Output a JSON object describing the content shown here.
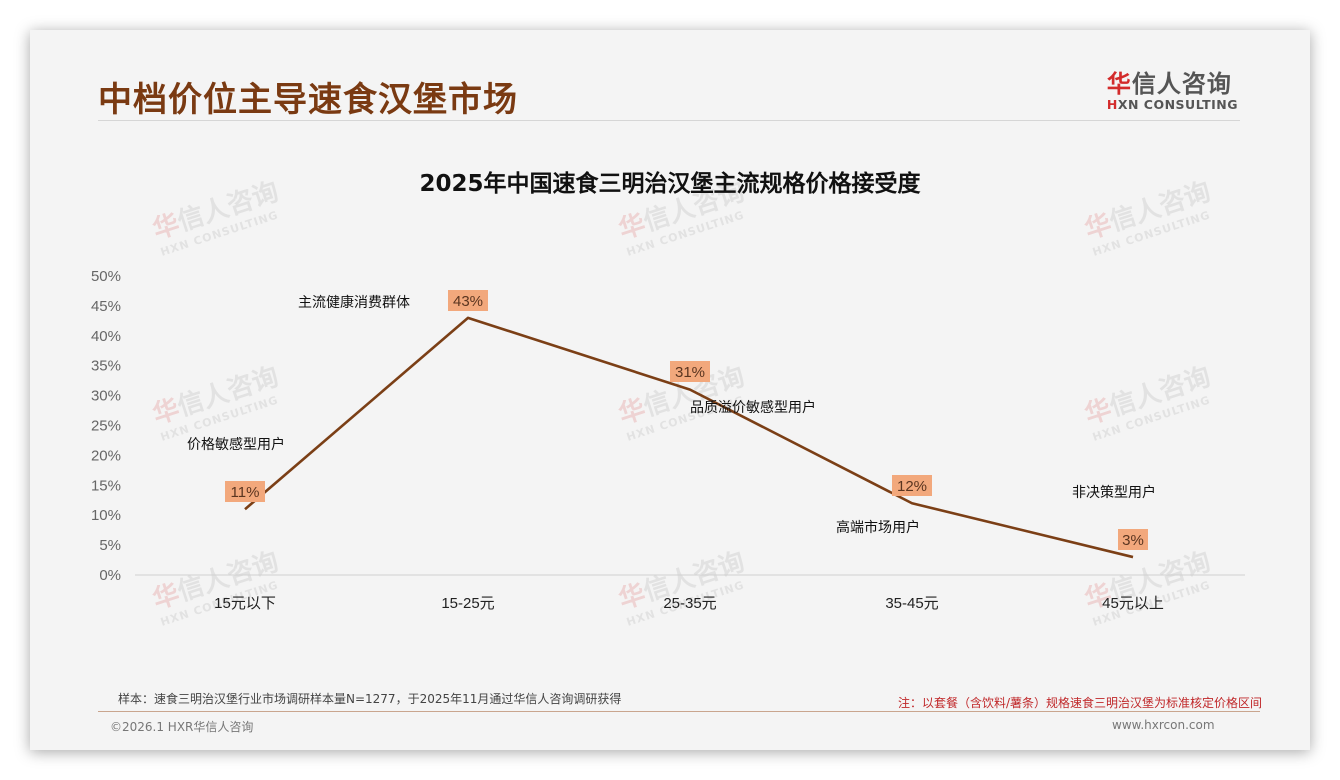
{
  "header": {
    "title": "中档价位主导速食汉堡市场",
    "logo": {
      "cn_highlight": "华",
      "cn_rest": "信人咨询",
      "en_highlight": "H",
      "en_rest": "XN CONSULTING"
    }
  },
  "watermark": {
    "cn_highlight": "华",
    "cn_rest": "信人咨询",
    "en": "HXN CONSULTING"
  },
  "chart_data": {
    "type": "line",
    "title": "2025年中国速食三明治汉堡主流规格价格接受度",
    "xlabel": "",
    "ylabel": "",
    "categories": [
      "15元以下",
      "15-25元",
      "25-35元",
      "35-45元",
      "45元以上"
    ],
    "values": [
      11,
      43,
      31,
      12,
      3
    ],
    "value_labels": [
      "11%",
      "43%",
      "31%",
      "12%",
      "3%"
    ],
    "segment_labels": [
      "价格敏感型用户",
      "主流健康消费群体",
      "品质溢价敏感型用户",
      "高端市场用户",
      "非决策型用户"
    ],
    "ylim": [
      0,
      50
    ],
    "yticks": [
      "0%",
      "5%",
      "10%",
      "15%",
      "20%",
      "25%",
      "30%",
      "35%",
      "40%",
      "45%",
      "50%"
    ],
    "grid": false,
    "legend": "none",
    "line_color": "#7b3f16",
    "label_bg_color": "#f2a87c"
  },
  "footer": {
    "sample": "样本：速食三明治汉堡行业市场调研样本量N=1277，于2025年11月通过华信人咨询调研获得",
    "note": "注：以套餐（含饮料/薯条）规格速食三明治汉堡为标准核定价格区间",
    "copyright": "©2026.1 HXR华信人咨询",
    "website": "www.hxrcon.com"
  }
}
